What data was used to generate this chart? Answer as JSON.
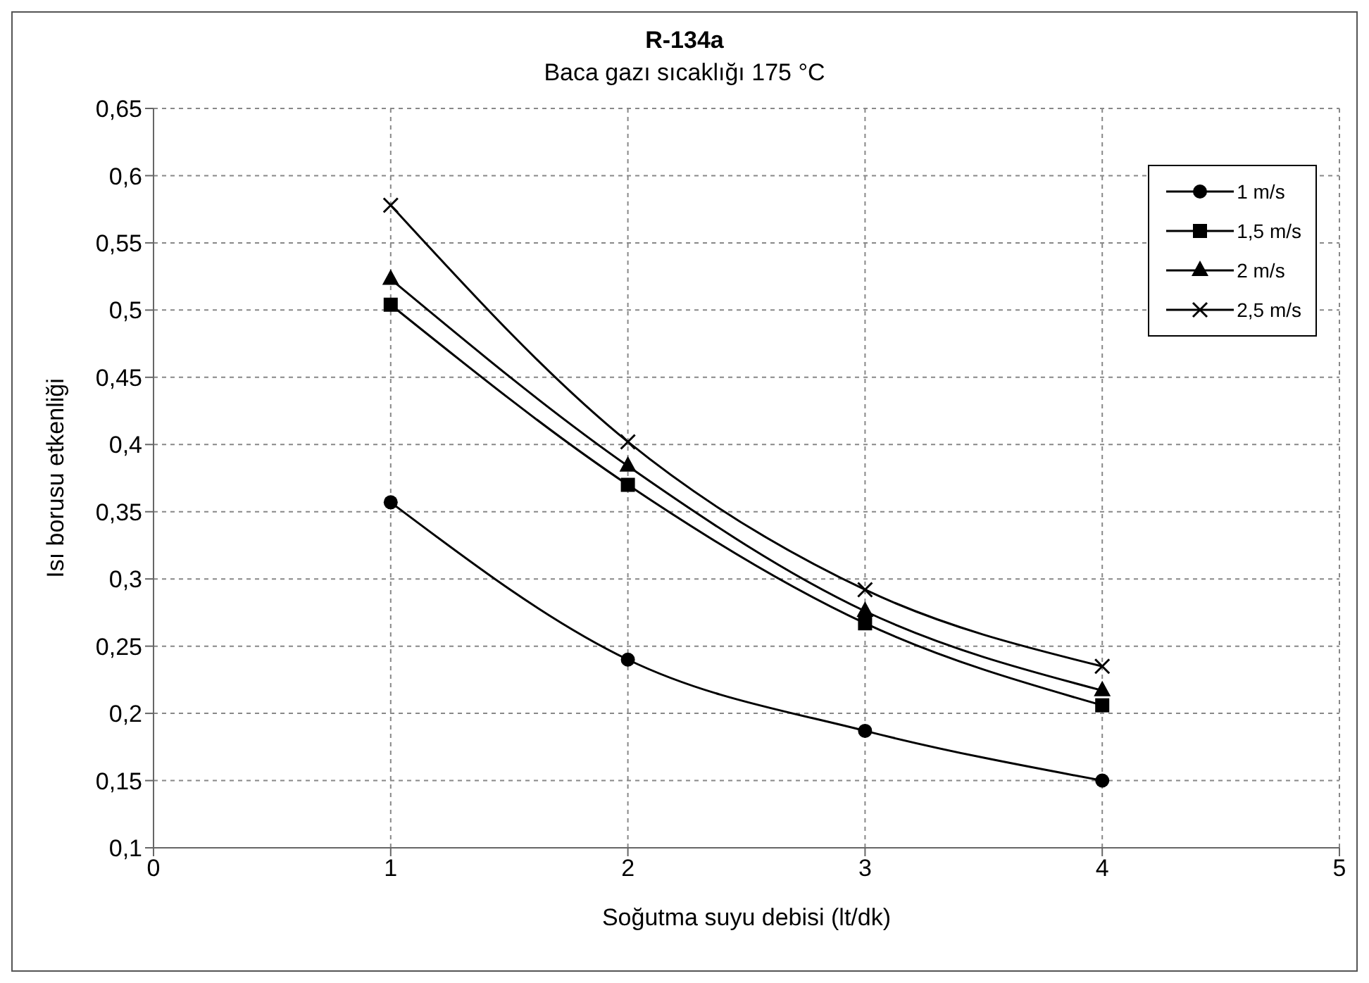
{
  "chart_data": {
    "type": "line",
    "title": "R-134a",
    "subtitle": "Baca gazı sıcaklığı 175 °C",
    "xlabel": "Soğutma suyu debisi (lt/dk)",
    "ylabel": "Isı borusu etkenliği",
    "x": [
      1,
      2,
      3,
      4
    ],
    "series": [
      {
        "name": "1 m/s",
        "color": "#000000",
        "marker": "circle",
        "values": [
          0.357,
          0.24,
          0.187,
          0.15
        ]
      },
      {
        "name": "1,5 m/s",
        "color": "#000000",
        "marker": "square",
        "values": [
          0.504,
          0.37,
          0.267,
          0.206
        ]
      },
      {
        "name": "2 m/s",
        "color": "#000000",
        "marker": "triangle",
        "values": [
          0.523,
          0.384,
          0.276,
          0.217
        ]
      },
      {
        "name": "2,5 m/s",
        "color": "#000000",
        "marker": "cross",
        "values": [
          0.578,
          0.402,
          0.292,
          0.235
        ]
      }
    ],
    "xlim": [
      0,
      5
    ],
    "xticks": [
      0,
      1,
      2,
      3,
      4,
      5
    ],
    "ylim": [
      0.1,
      0.65
    ],
    "yticks": [
      {
        "value": 0.1,
        "label": "0,1"
      },
      {
        "value": 0.15,
        "label": "0,15"
      },
      {
        "value": 0.2,
        "label": "0,2"
      },
      {
        "value": 0.25,
        "label": "0,25"
      },
      {
        "value": 0.3,
        "label": "0,3"
      },
      {
        "value": 0.35,
        "label": "0,35"
      },
      {
        "value": 0.4,
        "label": "0,4"
      },
      {
        "value": 0.45,
        "label": "0,45"
      },
      {
        "value": 0.5,
        "label": "0,5"
      },
      {
        "value": 0.55,
        "label": "0,55"
      },
      {
        "value": 0.6,
        "label": "0,6"
      },
      {
        "value": 0.65,
        "label": "0,65"
      }
    ],
    "grid": true,
    "legend": "top right",
    "line_style": "solid"
  }
}
